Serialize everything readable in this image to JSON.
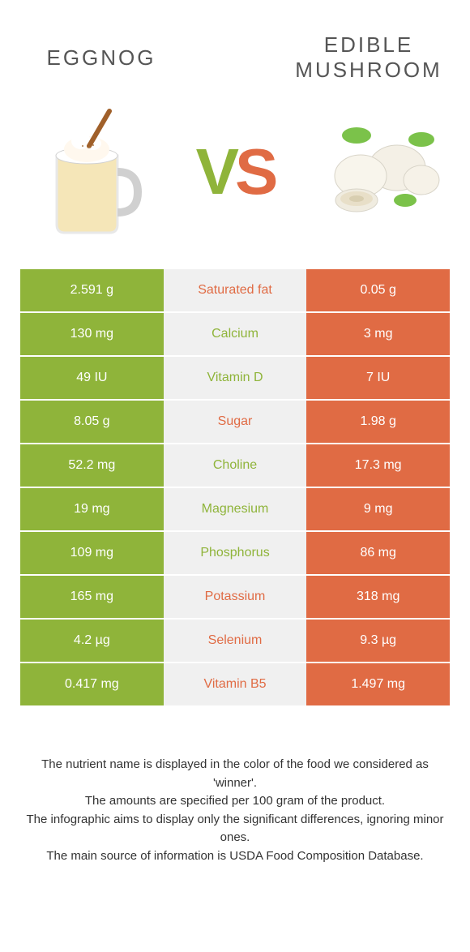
{
  "header": {
    "left": "Eggnog",
    "right": "Edible Mushroom"
  },
  "vs": {
    "v": "V",
    "s": "S"
  },
  "colors": {
    "green": "#8fb43a",
    "orange": "#e06b44",
    "mid_bg": "#f0f0f0",
    "text": "#555555"
  },
  "rows": [
    {
      "left": "2.591 g",
      "label": "Saturated fat",
      "right": "0.05 g",
      "winner": "orange"
    },
    {
      "left": "130 mg",
      "label": "Calcium",
      "right": "3 mg",
      "winner": "green"
    },
    {
      "left": "49 IU",
      "label": "Vitamin D",
      "right": "7 IU",
      "winner": "green"
    },
    {
      "left": "8.05 g",
      "label": "Sugar",
      "right": "1.98 g",
      "winner": "orange"
    },
    {
      "left": "52.2 mg",
      "label": "Choline",
      "right": "17.3 mg",
      "winner": "green"
    },
    {
      "left": "19 mg",
      "label": "Magnesium",
      "right": "9 mg",
      "winner": "green"
    },
    {
      "left": "109 mg",
      "label": "Phosphorus",
      "right": "86 mg",
      "winner": "green"
    },
    {
      "left": "165 mg",
      "label": "Potassium",
      "right": "318 mg",
      "winner": "orange"
    },
    {
      "left": "4.2 µg",
      "label": "Selenium",
      "right": "9.3 µg",
      "winner": "orange"
    },
    {
      "left": "0.417 mg",
      "label": "Vitamin B5",
      "right": "1.497 mg",
      "winner": "orange"
    }
  ],
  "footer": {
    "l1": "The nutrient name is displayed in the color of the food we considered as 'winner'.",
    "l2": "The amounts are specified per 100 gram of the product.",
    "l3": "The infographic aims to display only the significant differences, ignoring minor ones.",
    "l4": "The main source of information is USDA Food Composition Database."
  }
}
